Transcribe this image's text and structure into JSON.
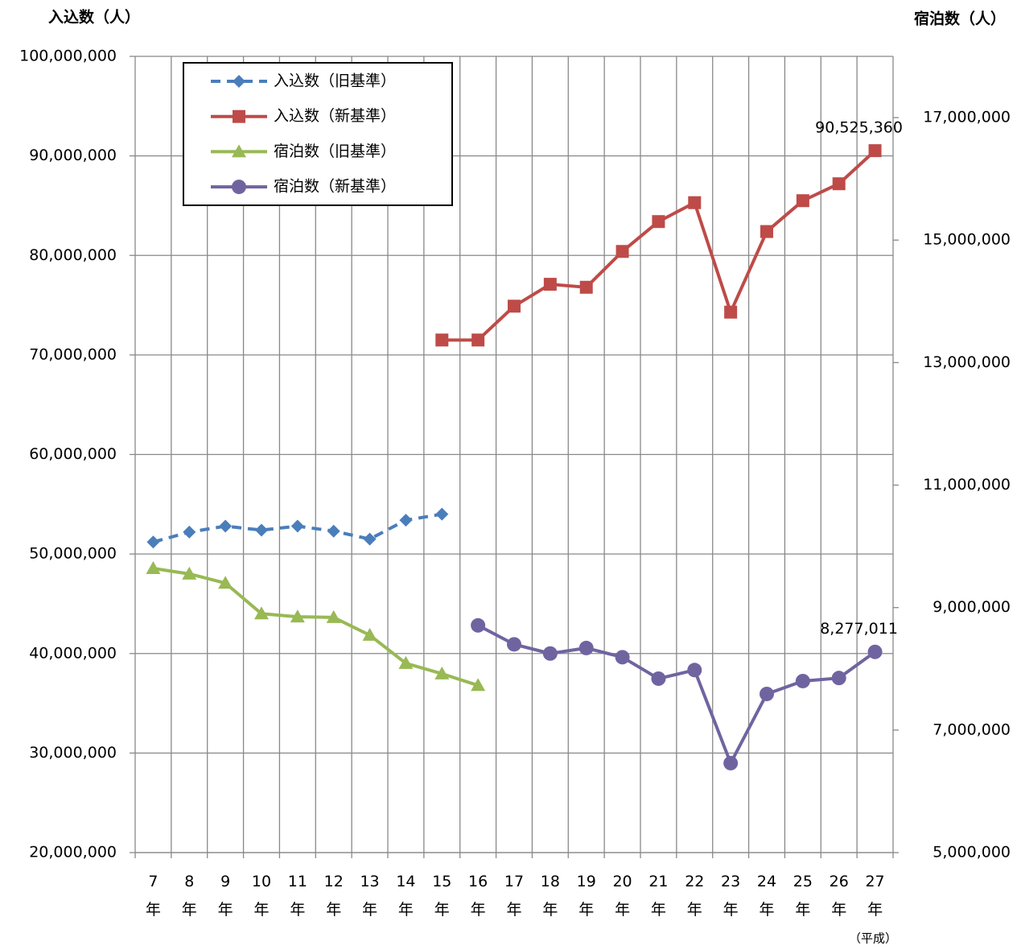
{
  "chart_data": {
    "type": "line",
    "ylabel": "入込数（人）",
    "y2label": "宿泊数（人）",
    "xlabel": "（平成）",
    "categories": [
      "7年",
      "8年",
      "9年",
      "10年",
      "11年",
      "12年",
      "13年",
      "14年",
      "15年",
      "16年",
      "17年",
      "18年",
      "19年",
      "20年",
      "21年",
      "22年",
      "23年",
      "24年",
      "25年",
      "26年",
      "27年"
    ],
    "ylim": [
      20000000,
      100000000
    ],
    "yticks": [
      {
        "value": 20000000,
        "label": "20,000,000"
      },
      {
        "value": 30000000,
        "label": "30,000,000"
      },
      {
        "value": 40000000,
        "label": "40,000,000"
      },
      {
        "value": 50000000,
        "label": "50,000,000"
      },
      {
        "value": 60000000,
        "label": "60,000,000"
      },
      {
        "value": 70000000,
        "label": "70,000,000"
      },
      {
        "value": 80000000,
        "label": "80,000,000"
      },
      {
        "value": 90000000,
        "label": "90,000,000"
      },
      {
        "value": 100000000,
        "label": "100,000,000"
      }
    ],
    "y2lim": [
      5000000,
      18000000
    ],
    "y2ticks": [
      {
        "value": 5000000,
        "label": "5,000,000"
      },
      {
        "value": 7000000,
        "label": "7,000,000"
      },
      {
        "value": 9000000,
        "label": "9,000,000"
      },
      {
        "value": 11000000,
        "label": "11,000,000"
      },
      {
        "value": 13000000,
        "label": "13,000,000"
      },
      {
        "value": 15000000,
        "label": "15,000,000"
      },
      {
        "value": 17000000,
        "label": "17,000,000"
      }
    ],
    "grid": true,
    "legend": "upper left",
    "series": [
      {
        "name": "入込数（旧基準）",
        "color": "#4a7ebb",
        "marker": "diamond",
        "dashed": true,
        "values": [
          51200000,
          52200000,
          52800000,
          52400000,
          52800000,
          52300000,
          51500000,
          53400000,
          54000000,
          null,
          null,
          null,
          null,
          null,
          null,
          null,
          null,
          null,
          null,
          null,
          null
        ]
      },
      {
        "name": "入込数（新基準）",
        "color": "#be4b48",
        "marker": "square",
        "values": [
          null,
          null,
          null,
          null,
          null,
          null,
          null,
          null,
          71500000,
          71500000,
          74900000,
          77100000,
          76800000,
          80400000,
          83400000,
          85300000,
          74300000,
          82400000,
          85500000,
          87200000,
          90525360
        ],
        "value_labels": [
          null,
          null,
          null,
          null,
          null,
          null,
          null,
          null,
          null,
          null,
          null,
          null,
          null,
          null,
          null,
          null,
          null,
          null,
          null,
          null,
          "90,525,360"
        ]
      },
      {
        "name": "宿泊数（旧基準）",
        "color": "#98b954",
        "marker": "triangle",
        "axis": "y2",
        "values": [
          9640000,
          9550000,
          9400000,
          8900000,
          8850000,
          8840000,
          8550000,
          8090000,
          7920000,
          7730000,
          null,
          null,
          null,
          null,
          null,
          null,
          null,
          null,
          null,
          null,
          null
        ]
      },
      {
        "name": "宿泊数（新基準）",
        "color": "#7064a0",
        "marker": "circle",
        "axis": "y2",
        "values": [
          null,
          null,
          null,
          null,
          null,
          null,
          null,
          null,
          null,
          8710000,
          8400000,
          8250000,
          8340000,
          8190000,
          7840000,
          7980000,
          6460000,
          7590000,
          7800000,
          7850000,
          8277011
        ],
        "value_labels": [
          null,
          null,
          null,
          null,
          null,
          null,
          null,
          null,
          null,
          null,
          null,
          null,
          null,
          null,
          null,
          null,
          null,
          null,
          null,
          null,
          "8,277,011"
        ]
      }
    ]
  }
}
